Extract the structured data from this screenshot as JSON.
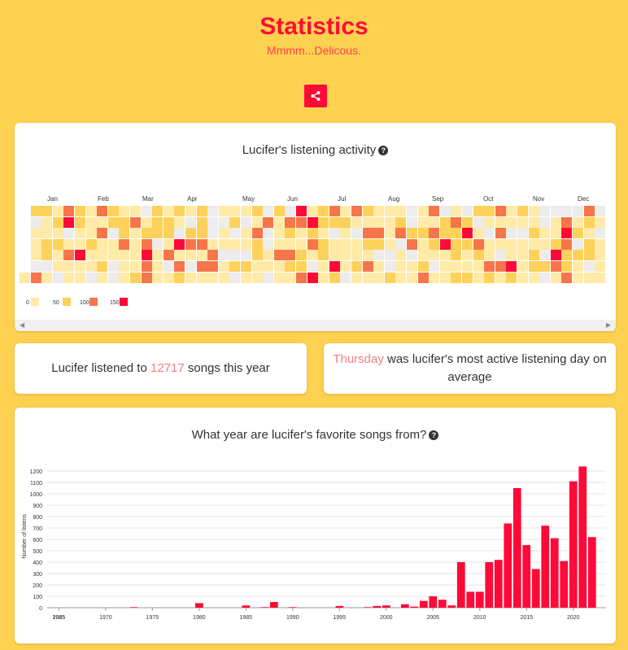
{
  "header": {
    "title": "Statistics",
    "subtitle": "Mmmm...Delicous."
  },
  "share_icon": "share-icon",
  "activity": {
    "title": "Lucifer's listening activity",
    "months": [
      "Jan",
      "Feb",
      "Mar",
      "Apr",
      "May",
      "Jun",
      "Jul",
      "Aug",
      "Sep",
      "Oct",
      "Nov",
      "Dec"
    ],
    "legend": [
      "0",
      "50",
      "100",
      "150"
    ],
    "colors": [
      "#ececec",
      "#ffeaa8",
      "#fdd15a",
      "#f7754a",
      "#ff0a38"
    ]
  },
  "stats": {
    "songs_prefix": "Lucifer listened to ",
    "songs_count": "12717",
    "songs_suffix": " songs this year",
    "day": "Thursday",
    "day_suffix": " was lucifer's most active listening day on average"
  },
  "chart_data": {
    "type": "bar",
    "title": "What year are lucifer's favorite songs from?",
    "ylabel": "Number of listens",
    "xlabel": "",
    "ylim": [
      0,
      1250
    ],
    "yticks": [
      0,
      100,
      200,
      300,
      400,
      500,
      600,
      700,
      800,
      900,
      1000,
      1100,
      1200
    ],
    "xticks": [
      1965,
      1970,
      1975,
      1980,
      1985,
      1990,
      1995,
      2000,
      2005,
      2010,
      2015,
      2020
    ],
    "xtick_labels": [
      "1965",
      "1970",
      "1975",
      "1980",
      "1985",
      "1990",
      "1995",
      "2000",
      "2005",
      "2010",
      "2015",
      "2020"
    ],
    "extra_tick_label": "2025",
    "color": "#ff0a38",
    "x": [
      1973,
      1980,
      1985,
      1987,
      1988,
      1990,
      1995,
      1998,
      1999,
      2000,
      2002,
      2003,
      2004,
      2005,
      2006,
      2007,
      2008,
      2009,
      2010,
      2011,
      2012,
      2013,
      2014,
      2015,
      2016,
      2017,
      2018,
      2019,
      2020,
      2021,
      2022
    ],
    "values": [
      5,
      40,
      20,
      5,
      50,
      5,
      15,
      5,
      15,
      20,
      30,
      10,
      60,
      100,
      70,
      20,
      400,
      140,
      140,
      400,
      420,
      740,
      1050,
      550,
      340,
      720,
      610,
      410,
      1110,
      1240,
      620
    ]
  }
}
